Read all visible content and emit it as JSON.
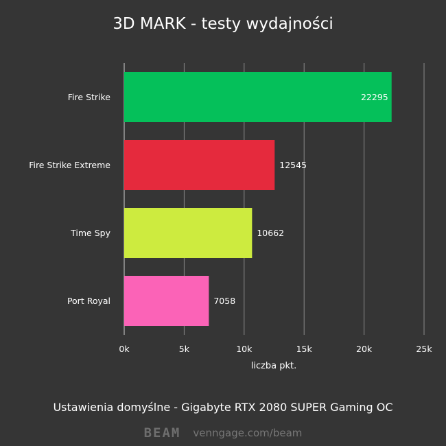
{
  "chart_data": {
    "type": "bar",
    "orientation": "horizontal",
    "title": "3D MARK - testy wydajności",
    "categories": [
      "Fire Strike",
      "Fire Strike Extreme",
      "Time Spy",
      "Port Royal"
    ],
    "values": [
      22295,
      12545,
      10662,
      7058
    ],
    "value_labels": [
      "22295",
      "12545",
      "10662",
      "7058"
    ],
    "bar_colors": [
      "#05c05a",
      "#e52a3d",
      "#cdeb3f",
      "#fb63b7"
    ],
    "value_label_colors": [
      "#ffffff",
      "#ffffff",
      "#ffffff",
      "#ffffff"
    ],
    "value_label_inside": [
      true,
      false,
      false,
      false
    ],
    "xlabel": "liczba pkt.",
    "ylabel": "",
    "xlim": [
      0,
      25000
    ],
    "x_ticks": [
      0,
      5000,
      10000,
      15000,
      20000,
      25000
    ],
    "x_tick_labels": [
      "0k",
      "5k",
      "10k",
      "15k",
      "20k",
      "25k"
    ],
    "grid": true,
    "grid_color": "#8a8a8a",
    "legend": "none"
  },
  "footer": {
    "note": "Ustawienia domyślne - Gigabyte RTX 2080 SUPER Gaming OC",
    "brand": "BEAM",
    "link": "venngage.com/beam"
  },
  "colors": {
    "background": "#353535",
    "text": "#ffffff",
    "brand_muted": "#6e6e6e"
  }
}
